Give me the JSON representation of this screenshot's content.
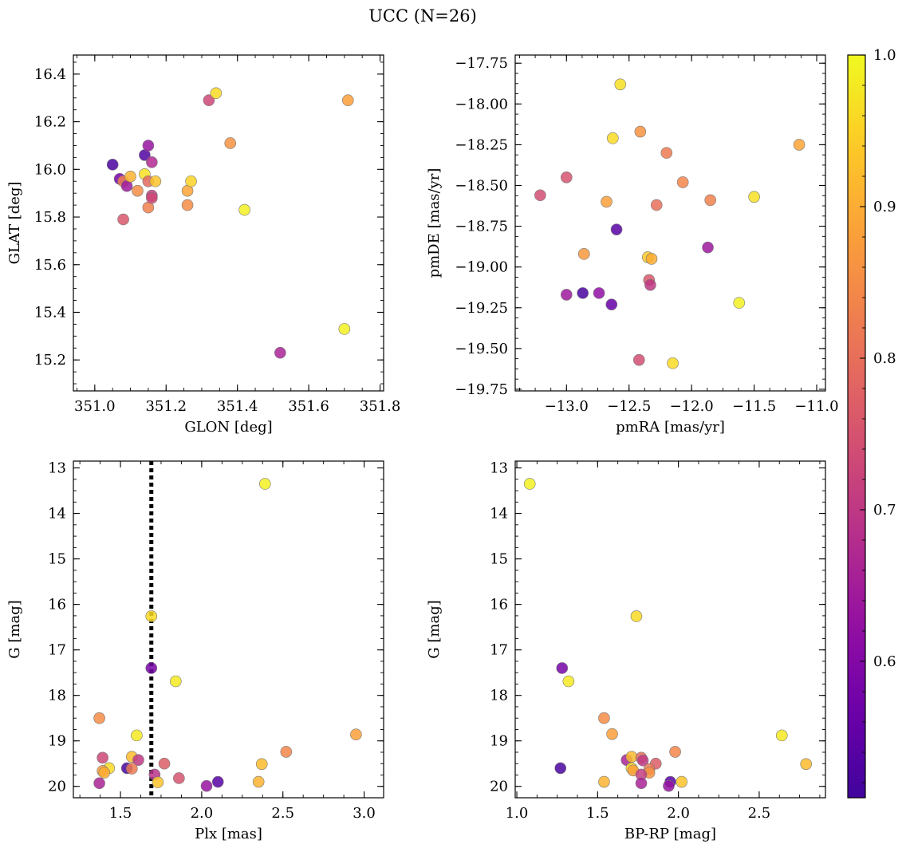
{
  "figure": {
    "title": "UCC (N=26)"
  },
  "colorbar": {
    "cmap": "plasma",
    "range": [
      0.51,
      1.0
    ],
    "ticks": [
      0.6,
      0.7,
      0.8,
      0.9,
      1.0
    ],
    "tick_labels": [
      "0.6",
      "0.7",
      "0.8",
      "0.9",
      "1.0"
    ]
  },
  "chart_data": [
    {
      "type": "scatter",
      "name": "galactic-coords",
      "xlabel": "GLON [deg]",
      "ylabel": "GLAT [deg]",
      "xlim": [
        350.94,
        351.81
      ],
      "ylim": [
        15.07,
        16.48
      ],
      "invert_y": false,
      "xticks": [
        351.0,
        351.2,
        351.4,
        351.6,
        351.8
      ],
      "xtick_labels": [
        "351.0",
        "351.2",
        "351.4",
        "351.6",
        "351.8"
      ],
      "yticks": [
        15.2,
        15.4,
        15.6,
        15.8,
        16.0,
        16.2,
        16.4
      ],
      "ytick_labels": [
        "15.2",
        "15.4",
        "15.6",
        "15.8",
        "16.0",
        "16.2",
        "16.4"
      ],
      "points": [
        {
          "x": 351.05,
          "y": 16.02,
          "c": 0.52
        },
        {
          "x": 351.07,
          "y": 15.96,
          "c": 0.58
        },
        {
          "x": 351.08,
          "y": 15.79,
          "c": 0.76
        },
        {
          "x": 351.08,
          "y": 15.95,
          "c": 0.83
        },
        {
          "x": 351.09,
          "y": 15.93,
          "c": 0.64
        },
        {
          "x": 351.1,
          "y": 15.97,
          "c": 0.91
        },
        {
          "x": 351.12,
          "y": 15.91,
          "c": 0.85
        },
        {
          "x": 351.14,
          "y": 16.06,
          "c": 0.53
        },
        {
          "x": 351.14,
          "y": 15.98,
          "c": 0.97
        },
        {
          "x": 351.15,
          "y": 15.95,
          "c": 0.79
        },
        {
          "x": 351.15,
          "y": 15.84,
          "c": 0.83
        },
        {
          "x": 351.15,
          "y": 16.1,
          "c": 0.63
        },
        {
          "x": 351.16,
          "y": 15.89,
          "c": 0.71
        },
        {
          "x": 351.16,
          "y": 15.88,
          "c": 0.73
        },
        {
          "x": 351.16,
          "y": 16.03,
          "c": 0.67
        },
        {
          "x": 351.17,
          "y": 15.95,
          "c": 0.93
        },
        {
          "x": 351.26,
          "y": 15.91,
          "c": 0.89
        },
        {
          "x": 351.26,
          "y": 15.85,
          "c": 0.85
        },
        {
          "x": 351.27,
          "y": 15.95,
          "c": 0.95
        },
        {
          "x": 351.32,
          "y": 16.29,
          "c": 0.73
        },
        {
          "x": 351.34,
          "y": 16.32,
          "c": 0.96
        },
        {
          "x": 351.38,
          "y": 16.11,
          "c": 0.86
        },
        {
          "x": 351.42,
          "y": 15.83,
          "c": 0.99
        },
        {
          "x": 351.52,
          "y": 15.23,
          "c": 0.66
        },
        {
          "x": 351.7,
          "y": 15.33,
          "c": 0.99
        },
        {
          "x": 351.71,
          "y": 16.29,
          "c": 0.88
        }
      ]
    },
    {
      "type": "scatter",
      "name": "proper-motions",
      "xlabel": "pmRA [mas/yr]",
      "ylabel": "pmDE [mas/yr]",
      "xlim": [
        -13.41,
        -10.93
      ],
      "ylim": [
        -19.76,
        -17.7
      ],
      "invert_y": false,
      "xticks": [
        -13.0,
        -12.5,
        -12.0,
        -11.5,
        -11.0
      ],
      "xtick_labels": [
        "−13.0",
        "−12.5",
        "−12.0",
        "−11.5",
        "−11.0"
      ],
      "yticks": [
        -19.75,
        -19.5,
        -19.25,
        -19.0,
        -18.75,
        -18.5,
        -18.25,
        -18.0,
        -17.75
      ],
      "ytick_labels": [
        "−19.75",
        "−19.50",
        "−19.25",
        "−19.00",
        "−18.75",
        "−18.50",
        "−18.25",
        "−18.00",
        "−17.75"
      ],
      "points": [
        {
          "x": -12.57,
          "y": -17.88,
          "c": 0.97
        },
        {
          "x": -12.41,
          "y": -18.17,
          "c": 0.86
        },
        {
          "x": -12.63,
          "y": -18.21,
          "c": 0.96
        },
        {
          "x": -12.2,
          "y": -18.3,
          "c": 0.82
        },
        {
          "x": -11.14,
          "y": -18.25,
          "c": 0.89
        },
        {
          "x": -13.0,
          "y": -18.45,
          "c": 0.75
        },
        {
          "x": -12.07,
          "y": -18.48,
          "c": 0.84
        },
        {
          "x": -13.21,
          "y": -18.56,
          "c": 0.74
        },
        {
          "x": -12.68,
          "y": -18.6,
          "c": 0.88
        },
        {
          "x": -11.85,
          "y": -18.59,
          "c": 0.83
        },
        {
          "x": -11.5,
          "y": -18.57,
          "c": 0.97
        },
        {
          "x": -12.28,
          "y": -18.62,
          "c": 0.8
        },
        {
          "x": -12.6,
          "y": -18.77,
          "c": 0.54
        },
        {
          "x": -11.87,
          "y": -18.88,
          "c": 0.64
        },
        {
          "x": -12.86,
          "y": -18.92,
          "c": 0.87
        },
        {
          "x": -12.35,
          "y": -18.94,
          "c": 0.94
        },
        {
          "x": -12.32,
          "y": -18.95,
          "c": 0.9
        },
        {
          "x": -12.34,
          "y": -19.08,
          "c": 0.76
        },
        {
          "x": -12.33,
          "y": -19.11,
          "c": 0.7
        },
        {
          "x": -13.0,
          "y": -19.17,
          "c": 0.64
        },
        {
          "x": -12.87,
          "y": -19.16,
          "c": 0.52
        },
        {
          "x": -12.74,
          "y": -19.16,
          "c": 0.62
        },
        {
          "x": -12.64,
          "y": -19.23,
          "c": 0.56
        },
        {
          "x": -11.62,
          "y": -19.22,
          "c": 0.99
        },
        {
          "x": -12.42,
          "y": -19.57,
          "c": 0.74
        },
        {
          "x": -12.15,
          "y": -19.59,
          "c": 0.96
        }
      ]
    },
    {
      "type": "scatter",
      "name": "parallax-magnitude",
      "xlabel": "Plx [mas]",
      "ylabel": "G [mag]",
      "xlim": [
        1.21,
        3.12
      ],
      "ylim": [
        20.25,
        12.85
      ],
      "invert_y": true,
      "xticks": [
        1.5,
        2.0,
        2.5,
        3.0
      ],
      "xtick_labels": [
        "1.5",
        "2.0",
        "2.5",
        "3.0"
      ],
      "yticks": [
        13,
        14,
        15,
        16,
        17,
        18,
        19,
        20
      ],
      "ytick_labels": [
        "13",
        "14",
        "15",
        "16",
        "17",
        "18",
        "19",
        "20"
      ],
      "vline": {
        "x": 1.69,
        "style": "dotted"
      },
      "points": [
        {
          "x": 2.39,
          "y": 13.35,
          "c": 0.99
        },
        {
          "x": 1.69,
          "y": 16.26,
          "c": 0.96
        },
        {
          "x": 1.69,
          "y": 17.4,
          "c": 0.58
        },
        {
          "x": 1.84,
          "y": 17.69,
          "c": 0.98
        },
        {
          "x": 1.37,
          "y": 18.5,
          "c": 0.85
        },
        {
          "x": 1.6,
          "y": 18.88,
          "c": 0.98
        },
        {
          "x": 2.95,
          "y": 18.86,
          "c": 0.88
        },
        {
          "x": 1.39,
          "y": 19.37,
          "c": 0.73
        },
        {
          "x": 1.57,
          "y": 19.35,
          "c": 0.92
        },
        {
          "x": 1.61,
          "y": 19.42,
          "c": 0.7
        },
        {
          "x": 2.52,
          "y": 19.24,
          "c": 0.84
        },
        {
          "x": 1.77,
          "y": 19.5,
          "c": 0.77
        },
        {
          "x": 2.37,
          "y": 19.51,
          "c": 0.92
        },
        {
          "x": 1.43,
          "y": 19.6,
          "c": 0.96
        },
        {
          "x": 1.54,
          "y": 19.6,
          "c": 0.52
        },
        {
          "x": 1.57,
          "y": 19.61,
          "c": 0.82
        },
        {
          "x": 1.39,
          "y": 19.66,
          "c": 0.88
        },
        {
          "x": 1.4,
          "y": 19.7,
          "c": 0.9
        },
        {
          "x": 1.71,
          "y": 19.74,
          "c": 0.69
        },
        {
          "x": 1.86,
          "y": 19.82,
          "c": 0.75
        },
        {
          "x": 1.73,
          "y": 19.91,
          "c": 0.93
        },
        {
          "x": 2.1,
          "y": 19.9,
          "c": 0.54
        },
        {
          "x": 2.35,
          "y": 19.9,
          "c": 0.91
        },
        {
          "x": 1.37,
          "y": 19.93,
          "c": 0.66
        },
        {
          "x": 2.03,
          "y": 19.99,
          "c": 0.63
        }
      ]
    },
    {
      "type": "scatter",
      "name": "color-magnitude",
      "xlabel": "BP-RP [mag]",
      "ylabel": "G [mag]",
      "xlim": [
        0.99,
        2.91
      ],
      "ylim": [
        20.25,
        12.85
      ],
      "invert_y": true,
      "xticks": [
        1.0,
        1.5,
        2.0,
        2.5
      ],
      "xtick_labels": [
        "1.0",
        "1.5",
        "2.0",
        "2.5"
      ],
      "yticks": [
        13,
        14,
        15,
        16,
        17,
        18,
        19,
        20
      ],
      "ytick_labels": [
        "13",
        "14",
        "15",
        "16",
        "17",
        "18",
        "19",
        "20"
      ],
      "points": [
        {
          "x": 1.08,
          "y": 13.35,
          "c": 0.99
        },
        {
          "x": 1.74,
          "y": 16.26,
          "c": 0.96
        },
        {
          "x": 1.28,
          "y": 17.4,
          "c": 0.58
        },
        {
          "x": 1.32,
          "y": 17.69,
          "c": 0.98
        },
        {
          "x": 1.54,
          "y": 18.5,
          "c": 0.85
        },
        {
          "x": 1.59,
          "y": 18.85,
          "c": 0.88
        },
        {
          "x": 2.64,
          "y": 18.88,
          "c": 0.98
        },
        {
          "x": 1.98,
          "y": 19.24,
          "c": 0.84
        },
        {
          "x": 1.68,
          "y": 19.42,
          "c": 0.66
        },
        {
          "x": 1.71,
          "y": 19.35,
          "c": 0.92
        },
        {
          "x": 1.77,
          "y": 19.37,
          "c": 0.8
        },
        {
          "x": 1.78,
          "y": 19.43,
          "c": 0.7
        },
        {
          "x": 1.86,
          "y": 19.5,
          "c": 0.77
        },
        {
          "x": 2.79,
          "y": 19.51,
          "c": 0.92
        },
        {
          "x": 1.27,
          "y": 19.6,
          "c": 0.52
        },
        {
          "x": 1.71,
          "y": 19.6,
          "c": 0.96
        },
        {
          "x": 1.72,
          "y": 19.65,
          "c": 0.88
        },
        {
          "x": 1.82,
          "y": 19.62,
          "c": 0.82
        },
        {
          "x": 1.82,
          "y": 19.7,
          "c": 0.86
        },
        {
          "x": 1.77,
          "y": 19.74,
          "c": 0.71
        },
        {
          "x": 1.54,
          "y": 19.9,
          "c": 0.91
        },
        {
          "x": 1.77,
          "y": 19.93,
          "c": 0.66
        },
        {
          "x": 1.95,
          "y": 19.9,
          "c": 0.54
        },
        {
          "x": 2.02,
          "y": 19.9,
          "c": 0.93
        },
        {
          "x": 1.94,
          "y": 19.99,
          "c": 0.63
        }
      ]
    }
  ]
}
